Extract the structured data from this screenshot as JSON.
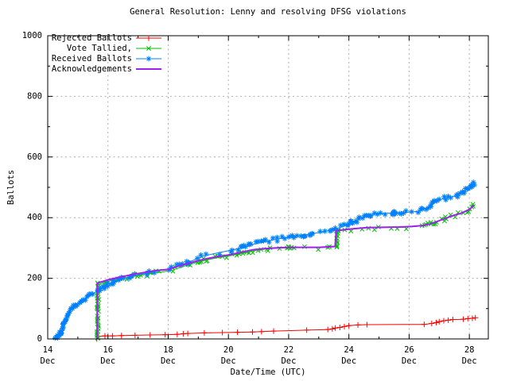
{
  "page": {
    "background": "#ffffff",
    "grid_color": "#b0b0b0",
    "border_color": "#000000"
  },
  "chart_data": {
    "type": "line",
    "title": "General Resolution: Lenny and resolving DFSG violations",
    "xlabel": "Date/Time (UTC)",
    "ylabel": "Ballots",
    "xlim_days": [
      14,
      28.63
    ],
    "ylim": [
      0,
      1000
    ],
    "y_major_ticks": [
      0,
      200,
      400,
      600,
      800,
      1000
    ],
    "y_minor_tick_step": 100,
    "x_major_ticks": [
      {
        "day": 14,
        "label": "14",
        "month": "Dec"
      },
      {
        "day": 16,
        "label": "16",
        "month": "Dec"
      },
      {
        "day": 18,
        "label": "18",
        "month": "Dec"
      },
      {
        "day": 20,
        "label": "20",
        "month": "Dec"
      },
      {
        "day": 22,
        "label": "22",
        "month": "Dec"
      },
      {
        "day": 24,
        "label": "24",
        "month": "Dec"
      },
      {
        "day": 26,
        "label": "26",
        "month": "Dec"
      },
      {
        "day": 28,
        "label": "28",
        "month": "Dec"
      }
    ],
    "x_minor_tick_step": 1,
    "grid": {
      "show": true,
      "style": "dashed"
    },
    "legend_position": "top-left-inside",
    "series": [
      {
        "name": "Rejected Ballots",
        "color": "#ff0000",
        "marker": "plus",
        "marker_placement": "points",
        "line_width": 1,
        "points": [
          [
            15.63,
            0
          ],
          [
            15.66,
            8
          ],
          [
            15.9,
            10
          ],
          [
            16.15,
            10
          ],
          [
            16.45,
            11
          ],
          [
            16.9,
            12
          ],
          [
            17.4,
            13
          ],
          [
            17.9,
            14
          ],
          [
            18.3,
            15
          ],
          [
            18.5,
            17
          ],
          [
            18.65,
            18
          ],
          [
            19.2,
            20
          ],
          [
            19.8,
            21
          ],
          [
            20.3,
            22
          ],
          [
            20.8,
            23
          ],
          [
            21.1,
            24
          ],
          [
            21.5,
            26
          ],
          [
            22.6,
            29
          ],
          [
            23.3,
            31
          ],
          [
            23.45,
            33
          ],
          [
            23.55,
            36
          ],
          [
            23.7,
            38
          ],
          [
            23.85,
            41
          ],
          [
            24.0,
            44
          ],
          [
            24.3,
            46
          ],
          [
            24.6,
            47
          ],
          [
            26.5,
            48
          ],
          [
            26.75,
            51
          ],
          [
            26.9,
            54
          ],
          [
            27.0,
            57
          ],
          [
            27.15,
            60
          ],
          [
            27.3,
            62
          ],
          [
            27.45,
            64
          ],
          [
            27.8,
            65
          ],
          [
            27.95,
            67
          ],
          [
            28.1,
            68
          ],
          [
            28.2,
            70
          ]
        ],
        "marker_clusters": []
      },
      {
        "name": "Vote Tallied,",
        "color": "#00c000",
        "marker": "cross",
        "marker_placement": "dense",
        "line_width": 1,
        "points": [
          [
            15.655,
            0
          ],
          [
            15.67,
            178
          ],
          [
            15.8,
            184
          ],
          [
            16.0,
            190
          ],
          [
            16.3,
            196
          ],
          [
            16.6,
            202
          ],
          [
            17.0,
            209
          ],
          [
            17.4,
            215
          ],
          [
            17.8,
            221
          ],
          [
            18.15,
            227
          ],
          [
            18.5,
            239
          ],
          [
            18.9,
            251
          ],
          [
            19.3,
            261
          ],
          [
            19.7,
            269
          ],
          [
            20.1,
            275
          ],
          [
            20.5,
            283
          ],
          [
            20.9,
            292
          ],
          [
            21.3,
            297
          ],
          [
            21.8,
            300
          ],
          [
            22.3,
            301
          ],
          [
            23.0,
            301
          ],
          [
            23.58,
            304
          ],
          [
            23.62,
            356
          ],
          [
            23.9,
            360
          ],
          [
            24.2,
            363
          ],
          [
            24.6,
            366
          ],
          [
            25.1,
            367
          ],
          [
            25.7,
            368
          ],
          [
            26.1,
            370
          ],
          [
            26.45,
            373
          ],
          [
            26.7,
            378
          ],
          [
            26.9,
            385
          ],
          [
            27.1,
            393
          ],
          [
            27.3,
            400
          ],
          [
            27.5,
            407
          ],
          [
            27.7,
            413
          ],
          [
            27.9,
            421
          ],
          [
            28.05,
            430
          ],
          [
            28.15,
            440
          ]
        ],
        "marker_clusters": [
          [
            21.95,
            300
          ],
          [
            22.0,
            302
          ],
          [
            22.05,
            299
          ],
          [
            23.3,
            302
          ],
          [
            23.35,
            304
          ]
        ]
      },
      {
        "name": "Received Ballots",
        "color": "#0080ff",
        "marker": "star",
        "marker_placement": "dense",
        "line_width": 1,
        "points": [
          [
            14.25,
            2
          ],
          [
            14.33,
            8
          ],
          [
            14.42,
            18
          ],
          [
            14.5,
            38
          ],
          [
            14.58,
            62
          ],
          [
            14.68,
            85
          ],
          [
            14.8,
            100
          ],
          [
            14.95,
            112
          ],
          [
            15.1,
            122
          ],
          [
            15.25,
            132
          ],
          [
            15.4,
            142
          ],
          [
            15.55,
            152
          ],
          [
            15.7,
            162
          ],
          [
            15.85,
            172
          ],
          [
            16.0,
            180
          ],
          [
            16.2,
            188
          ],
          [
            16.5,
            198
          ],
          [
            16.8,
            206
          ],
          [
            17.1,
            213
          ],
          [
            17.4,
            219
          ],
          [
            17.7,
            225
          ],
          [
            18.0,
            231
          ],
          [
            18.3,
            239
          ],
          [
            18.6,
            250
          ],
          [
            18.9,
            262
          ],
          [
            19.2,
            274
          ],
          [
            19.5,
            281
          ],
          [
            19.8,
            287
          ],
          [
            20.1,
            293
          ],
          [
            20.4,
            300
          ],
          [
            20.7,
            308
          ],
          [
            21.0,
            316
          ],
          [
            21.3,
            323
          ],
          [
            21.6,
            329
          ],
          [
            21.9,
            334
          ],
          [
            22.2,
            338
          ],
          [
            22.5,
            342
          ],
          [
            22.8,
            347
          ],
          [
            23.1,
            353
          ],
          [
            23.4,
            359
          ],
          [
            23.7,
            367
          ],
          [
            23.95,
            377
          ],
          [
            24.2,
            389
          ],
          [
            24.45,
            400
          ],
          [
            24.7,
            408
          ],
          [
            24.95,
            413
          ],
          [
            25.3,
            415
          ],
          [
            25.7,
            416
          ],
          [
            26.0,
            418
          ],
          [
            26.3,
            421
          ],
          [
            26.5,
            429
          ],
          [
            26.7,
            438
          ],
          [
            26.85,
            450
          ],
          [
            27.0,
            458
          ],
          [
            27.15,
            463
          ],
          [
            27.35,
            467
          ],
          [
            27.55,
            472
          ],
          [
            27.75,
            481
          ],
          [
            27.95,
            494
          ],
          [
            28.1,
            507
          ],
          [
            28.2,
            514
          ]
        ],
        "marker_clusters": [
          [
            25.45,
            413
          ],
          [
            25.48,
            417
          ],
          [
            25.5,
            420
          ],
          [
            25.52,
            417
          ],
          [
            25.55,
            413
          ],
          [
            25.5,
            412
          ],
          [
            25.47,
            415
          ],
          [
            25.53,
            415
          ],
          [
            24.1,
            384
          ],
          [
            22.0,
            336
          ],
          [
            22.05,
            338
          ]
        ]
      },
      {
        "name": "Acknowledgements",
        "color": "#a020f0",
        "marker": "none",
        "marker_placement": "none",
        "line_width": 2,
        "points": [
          [
            15.64,
            0
          ],
          [
            15.65,
            184
          ],
          [
            16.0,
            195
          ],
          [
            16.4,
            204
          ],
          [
            16.8,
            212
          ],
          [
            17.2,
            219
          ],
          [
            17.6,
            226
          ],
          [
            18.0,
            229
          ],
          [
            18.4,
            242
          ],
          [
            18.8,
            253
          ],
          [
            19.2,
            263
          ],
          [
            19.6,
            271
          ],
          [
            20.0,
            277
          ],
          [
            20.4,
            285
          ],
          [
            20.8,
            294
          ],
          [
            21.2,
            298
          ],
          [
            21.7,
            301
          ],
          [
            22.3,
            302
          ],
          [
            23.0,
            302
          ],
          [
            23.54,
            305
          ],
          [
            23.58,
            357
          ],
          [
            23.9,
            361
          ],
          [
            24.2,
            364
          ],
          [
            24.6,
            367
          ],
          [
            25.1,
            368
          ],
          [
            25.7,
            369
          ],
          [
            26.1,
            371
          ],
          [
            26.45,
            374
          ],
          [
            26.7,
            379
          ],
          [
            26.9,
            386
          ],
          [
            27.1,
            394
          ],
          [
            27.3,
            401
          ],
          [
            27.5,
            408
          ],
          [
            27.7,
            414
          ],
          [
            27.9,
            422
          ],
          [
            28.05,
            431
          ],
          [
            28.15,
            441
          ]
        ],
        "marker_clusters": []
      }
    ]
  }
}
